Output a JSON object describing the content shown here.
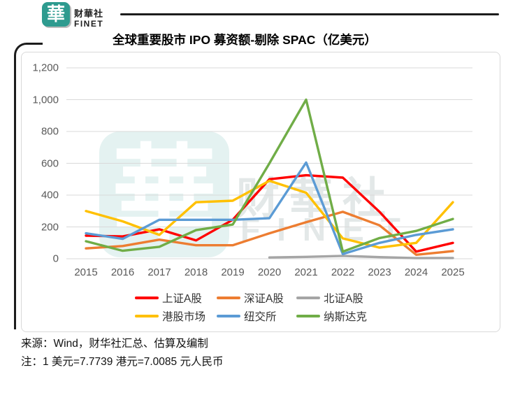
{
  "brand": {
    "logo_char": "華",
    "logo_cn": "财華社",
    "logo_en": "FINET",
    "teal": "#2E9B8F"
  },
  "chart_data": {
    "type": "line",
    "title": "全球重要股市 IPO 募资额-剔除 SPAC（亿美元）",
    "categories": [
      "2015",
      "2016",
      "2017",
      "2018",
      "2019",
      "2020",
      "2021",
      "2022",
      "2023",
      "2024",
      "2025"
    ],
    "series": [
      {
        "name": "上证A股",
        "color": "#FF0000",
        "values": [
          145,
          140,
          185,
          115,
          245,
          500,
          525,
          510,
          295,
          45,
          100
        ]
      },
      {
        "name": "深证A股",
        "color": "#ED7D31",
        "values": [
          65,
          80,
          120,
          85,
          85,
          160,
          230,
          295,
          210,
          25,
          48
        ]
      },
      {
        "name": "北证A股",
        "color": "#A5A5A5",
        "values": [
          null,
          null,
          null,
          null,
          null,
          8,
          12,
          18,
          10,
          4,
          5
        ]
      },
      {
        "name": "港股市场",
        "color": "#FFC000",
        "values": [
          300,
          235,
          150,
          355,
          365,
          490,
          415,
          128,
          70,
          100,
          355
        ]
      },
      {
        "name": "纽交所",
        "color": "#5B9BD5",
        "values": [
          160,
          125,
          245,
          245,
          245,
          255,
          605,
          30,
          100,
          150,
          185
        ]
      },
      {
        "name": "纳斯达克",
        "color": "#70AD47",
        "values": [
          110,
          50,
          75,
          180,
          215,
          600,
          1000,
          45,
          130,
          175,
          250
        ]
      }
    ],
    "ylim": [
      0,
      1200
    ],
    "ytick_step": 200,
    "ytick_labels": [
      "0",
      "200",
      "400",
      "600",
      "800",
      "1,000",
      "1,200"
    ],
    "grid": true,
    "gridline_color": "#d9d9d9",
    "legend_position": "bottom",
    "legend_rows": [
      [
        "上证A股",
        "深证A股",
        "北证A股"
      ],
      [
        "港股市场",
        "纽交所",
        "纳斯达克"
      ]
    ]
  },
  "watermark": {
    "char": "華",
    "cn": "财華社",
    "en": "FINET"
  },
  "footer": {
    "source": "来源：Wind，财华社汇总、估算及编制",
    "note": "注：1 美元=7.7739 港元=7.0085 元人民币"
  }
}
